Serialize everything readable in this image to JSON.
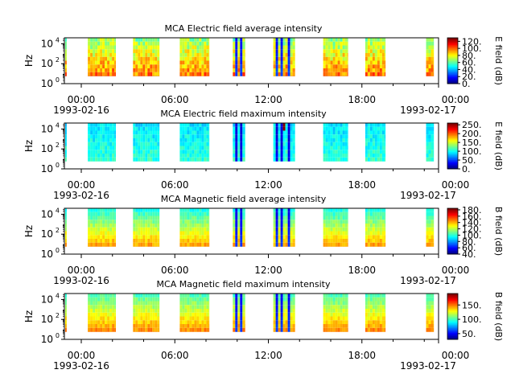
{
  "chart_data": [
    {
      "type": "heatmap",
      "title": "MCA  Electric field average intensity",
      "ylabel": "Hz",
      "y_ticks": [
        {
          "base": "10",
          "exp": "0"
        },
        {
          "base": "10",
          "exp": "2"
        },
        {
          "base": "10",
          "exp": "4"
        }
      ],
      "x_ticks": [
        "00:00",
        "06:00",
        "12:00",
        "18:00",
        "00:00"
      ],
      "x_date_labels": [
        "1993-02-16",
        "1993-02-17"
      ],
      "colorbar": {
        "label": "E field (dB)",
        "range": [
          0,
          130
        ],
        "ticks": [
          "0.",
          "20.",
          "40.",
          "60.",
          "80.",
          "100.",
          "120."
        ]
      },
      "pattern": "e-avg",
      "data_intervals_hours": [
        [
          0.05,
          0.15
        ],
        [
          1.5,
          3.3
        ],
        [
          4.4,
          6.1
        ],
        [
          7.4,
          9.3
        ],
        [
          10.8,
          11.6
        ],
        [
          13.4,
          14.8
        ],
        [
          16.6,
          18.2
        ],
        [
          19.3,
          20.6
        ],
        [
          23.2,
          23.7
        ]
      ]
    },
    {
      "type": "heatmap",
      "title": "MCA  Electric field maximum intensity",
      "ylabel": "Hz",
      "y_ticks": [
        {
          "base": "10",
          "exp": "0"
        },
        {
          "base": "10",
          "exp": "2"
        },
        {
          "base": "10",
          "exp": "4"
        }
      ],
      "x_ticks": [
        "00:00",
        "06:00",
        "12:00",
        "18:00",
        "00:00"
      ],
      "x_date_labels": [
        "1993-02-16",
        "1993-02-17"
      ],
      "colorbar": {
        "label": "E field (dB)",
        "range": [
          0,
          260
        ],
        "ticks": [
          "0.",
          "50.",
          "100.",
          "150.",
          "200.",
          "250."
        ]
      },
      "pattern": "e-max",
      "data_intervals_hours": [
        [
          0.05,
          0.15
        ],
        [
          1.5,
          3.3
        ],
        [
          4.4,
          6.1
        ],
        [
          7.4,
          9.3
        ],
        [
          10.8,
          11.6
        ],
        [
          13.4,
          14.8
        ],
        [
          16.6,
          18.2
        ],
        [
          19.3,
          20.6
        ],
        [
          23.2,
          23.7
        ]
      ]
    },
    {
      "type": "heatmap",
      "title": "MCA  Magnetic field average intensity",
      "ylabel": "Hz",
      "y_ticks": [
        {
          "base": "10",
          "exp": "0"
        },
        {
          "base": "10",
          "exp": "2"
        },
        {
          "base": "10",
          "exp": "4"
        }
      ],
      "x_ticks": [
        "00:00",
        "06:00",
        "12:00",
        "18:00",
        "00:00"
      ],
      "x_date_labels": [
        "1993-02-16",
        "1993-02-17"
      ],
      "colorbar": {
        "label": "B field (dB)",
        "range": [
          40,
          185
        ],
        "ticks": [
          "40.",
          "60.",
          "80.",
          "100.",
          "120.",
          "140.",
          "160.",
          "180."
        ]
      },
      "pattern": "b-avg",
      "data_intervals_hours": [
        [
          0.05,
          0.15
        ],
        [
          1.5,
          3.3
        ],
        [
          4.4,
          6.1
        ],
        [
          7.4,
          9.3
        ],
        [
          10.8,
          11.6
        ],
        [
          13.4,
          14.8
        ],
        [
          16.6,
          18.2
        ],
        [
          19.3,
          20.6
        ],
        [
          23.2,
          23.7
        ]
      ]
    },
    {
      "type": "heatmap",
      "title": "MCA  Magnetic field maximum intensity",
      "ylabel": "Hz",
      "y_ticks": [
        {
          "base": "10",
          "exp": "0"
        },
        {
          "base": "10",
          "exp": "2"
        },
        {
          "base": "10",
          "exp": "4"
        }
      ],
      "x_ticks": [
        "00:00",
        "06:00",
        "12:00",
        "18:00",
        "00:00"
      ],
      "x_date_labels": [
        "1993-02-16",
        "1993-02-17"
      ],
      "colorbar": {
        "label": "B field (dB)",
        "range": [
          30,
          190
        ],
        "ticks": [
          "50.",
          "100.",
          "150."
        ]
      },
      "pattern": "b-max",
      "data_intervals_hours": [
        [
          0.05,
          0.15
        ],
        [
          1.5,
          3.3
        ],
        [
          4.4,
          6.1
        ],
        [
          7.4,
          9.3
        ],
        [
          10.8,
          11.6
        ],
        [
          13.4,
          14.8
        ],
        [
          16.6,
          18.2
        ],
        [
          19.3,
          20.6
        ],
        [
          23.2,
          23.7
        ]
      ]
    }
  ]
}
